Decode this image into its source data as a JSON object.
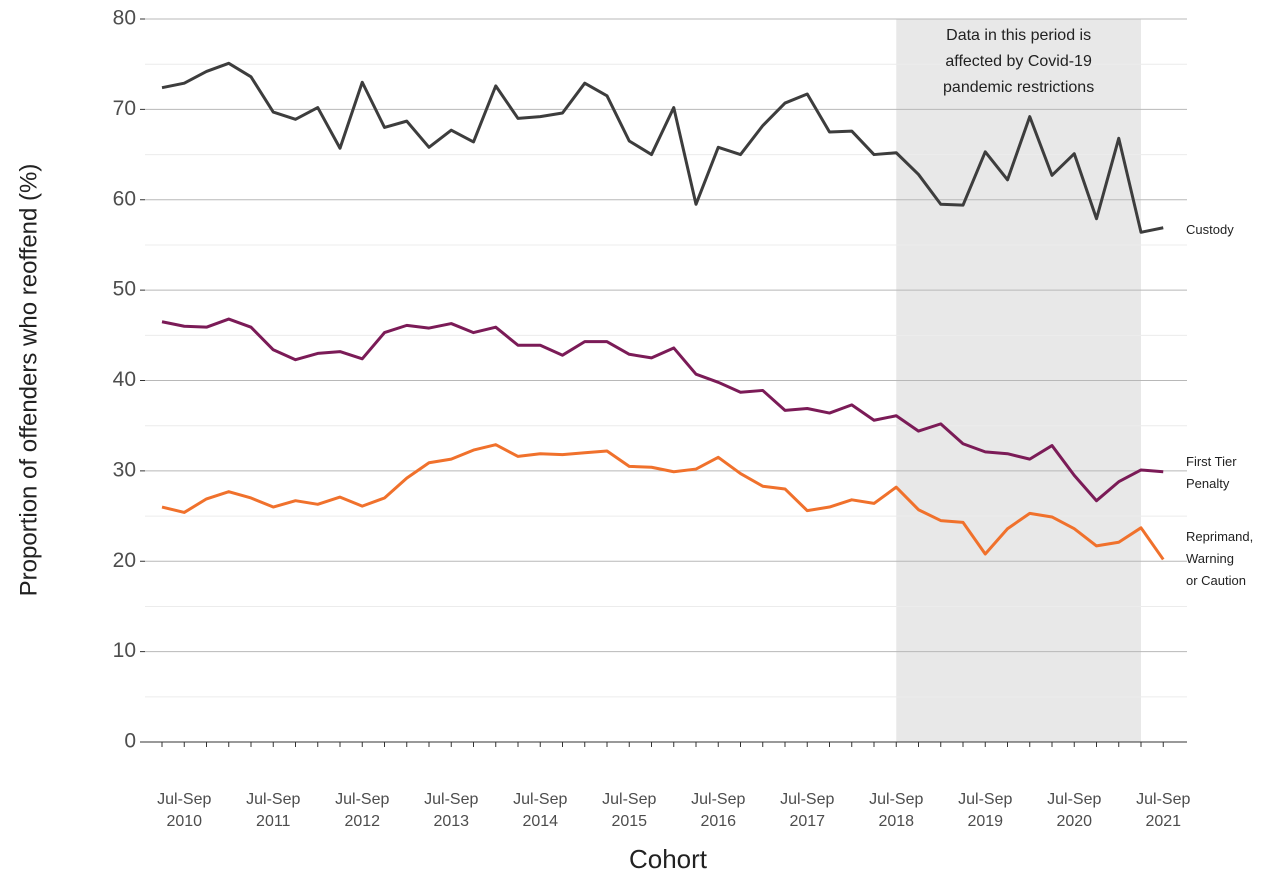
{
  "chart_data": {
    "type": "line",
    "x_title": "Cohort",
    "y_title": "Proportion of offenders who reoffend (%)",
    "annotation": "Data in this period is affected by Covid-19 pandemic restrictions",
    "shade_range": [
      33,
      44
    ],
    "categories": [
      null,
      "Jul-Sep 2010",
      null,
      null,
      null,
      "Jul-Sep 2011",
      null,
      null,
      null,
      "Jul-Sep 2012",
      null,
      null,
      null,
      "Jul-Sep 2013",
      null,
      null,
      null,
      "Jul-Sep 2014",
      null,
      null,
      null,
      "Jul-Sep 2015",
      null,
      null,
      null,
      "Jul-Sep 2016",
      null,
      null,
      null,
      "Jul-Sep 2017",
      null,
      null,
      null,
      "Jul-Sep 2018",
      null,
      null,
      null,
      "Jul-Sep 2019",
      null,
      null,
      null,
      "Jul-Sep 2020",
      null,
      null,
      null,
      "Jul-Sep 2021"
    ],
    "series": [
      {
        "name": "Custody",
        "color": "#3d3d3d",
        "values": [
          72.4,
          72.9,
          74.2,
          75.1,
          73.6,
          69.7,
          68.9,
          70.2,
          65.7,
          73.0,
          68.0,
          68.7,
          65.8,
          67.7,
          66.4,
          72.6,
          69.0,
          69.2,
          69.6,
          72.9,
          71.5,
          66.5,
          65.0,
          70.2,
          59.5,
          65.8,
          65.0,
          68.2,
          70.7,
          71.7,
          67.5,
          67.6,
          65.0,
          65.2,
          62.8,
          59.5,
          59.4,
          65.3,
          62.2,
          69.2,
          62.7,
          65.1,
          57.9,
          66.8,
          56.4,
          56.9
        ]
      },
      {
        "name": "First Tier Penalty",
        "color": "#7b1b57",
        "values": [
          46.5,
          46.0,
          45.9,
          46.8,
          45.9,
          43.4,
          42.3,
          43.0,
          43.2,
          42.4,
          45.3,
          46.1,
          45.8,
          46.3,
          45.3,
          45.9,
          43.9,
          43.9,
          42.8,
          44.3,
          44.3,
          42.9,
          42.5,
          43.6,
          40.7,
          39.8,
          38.7,
          38.9,
          36.7,
          36.9,
          36.4,
          37.3,
          35.6,
          36.1,
          34.4,
          35.2,
          33.0,
          32.1,
          31.9,
          31.3,
          32.8,
          29.5,
          26.7,
          28.8,
          30.1,
          29.9
        ]
      },
      {
        "name": "Reprimand, Warning or Caution",
        "color": "#f0712c",
        "values": [
          26.0,
          25.4,
          26.9,
          27.7,
          27.0,
          26.0,
          26.7,
          26.3,
          27.1,
          26.1,
          27.0,
          29.2,
          30.9,
          31.3,
          32.3,
          32.9,
          31.6,
          31.9,
          31.8,
          32.0,
          32.2,
          30.5,
          30.4,
          29.9,
          30.2,
          31.5,
          29.7,
          28.3,
          28.0,
          25.6,
          26.0,
          26.8,
          26.4,
          28.2,
          25.7,
          24.5,
          24.3,
          20.8,
          23.6,
          25.3,
          24.9,
          23.6,
          21.7,
          22.1,
          23.7,
          20.2
        ]
      }
    ],
    "ylim": [
      0,
      80
    ],
    "yticks": [
      0,
      10,
      20,
      30,
      40,
      50,
      60,
      70,
      80
    ],
    "y_minor_grid": [
      5,
      15,
      25,
      35,
      45,
      55,
      65,
      75
    ],
    "grid": true
  }
}
